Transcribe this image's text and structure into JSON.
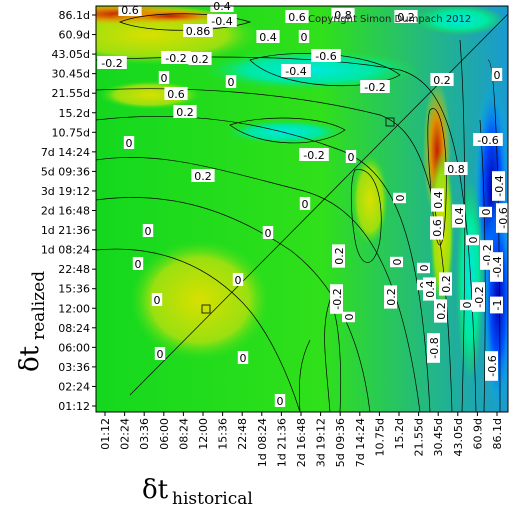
{
  "chart_data": {
    "type": "heatmap",
    "title": "",
    "xlabel": {
      "symbol": "δt",
      "subscript": "historical"
    },
    "ylabel": {
      "symbol": "δt",
      "subscript": "realized"
    },
    "x_ticks": [
      "01:12",
      "02:24",
      "03:36",
      "06:00",
      "08:24",
      "12:00",
      "15:36",
      "22:48",
      "1d 08:24",
      "1d 21:36",
      "2d 16:48",
      "3d 19:12",
      "5d 09:36",
      "7d 14:24",
      "10.75d",
      "15.2d",
      "21.55d",
      "30.45d",
      "43.05d",
      "60.9d",
      "86.1d"
    ],
    "y_ticks": [
      "86.1d",
      "60.9d",
      "43.05d",
      "30.45d",
      "21.55d",
      "15.2d",
      "10.75d",
      "7d 14:24",
      "5d 09:36",
      "3d 19:12",
      "2d 16:48",
      "1d 21:36",
      "1d 08:24",
      "22:48",
      "15:36",
      "12:00",
      "08:24",
      "06:00",
      "03:36",
      "02:24",
      "01:12"
    ],
    "contour_labels": [
      "0.6",
      "0.4",
      "-0.4",
      "0.6",
      "0.8",
      "0.2",
      "0.86",
      "0.4",
      "0",
      "-0.2",
      "-0.6",
      "0.2",
      "-0.2",
      "-0.4",
      "0",
      "0",
      "-0.2",
      "0.6",
      "0.2",
      "0.2",
      "0",
      "0",
      "-0.2",
      "0",
      "0.2",
      "0",
      "0",
      "0.4",
      "0.6",
      "0.4",
      "0",
      "0",
      "0",
      "0",
      "0",
      "0",
      "0",
      "0",
      "0",
      "0.2",
      "0",
      "0",
      "-0.2",
      "0",
      "0",
      "0",
      "0.2",
      "0",
      "-0.2",
      "-0.6",
      "0.4",
      "0.2",
      "-0.2",
      "-0.4",
      "-0.6",
      "0.8",
      "-0.4",
      "0.2",
      "-0.8",
      "-1",
      "-0.6"
    ],
    "color_scale": [
      "#0000b0",
      "#0040ff",
      "#00c8ff",
      "#00f0a0",
      "#10e040",
      "#60e020",
      "#d0e000",
      "#e08000",
      "#b01000"
    ],
    "copyright": "Copyright Simon Dumpach 2012",
    "grid": false,
    "legend": "none"
  }
}
